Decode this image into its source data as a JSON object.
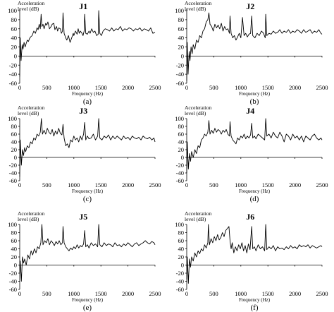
{
  "chart_data": [
    {
      "type": "line",
      "title": "J1",
      "panel_label": "(a)",
      "ylabel_lines": [
        "Acceleration",
        "level (dB)"
      ],
      "xlabel": "Frequency (Hz)",
      "xlim": [
        0,
        2500
      ],
      "ylim": [
        -60,
        100
      ],
      "xticks": [
        0,
        500,
        1000,
        1500,
        2000,
        2500
      ],
      "yticks": [
        -60,
        -40,
        -20,
        0,
        20,
        40,
        60,
        80,
        100
      ],
      "x": [
        0,
        10,
        25,
        45,
        60,
        80,
        100,
        120,
        140,
        160,
        180,
        200,
        230,
        260,
        290,
        320,
        340,
        360,
        380,
        395,
        410,
        430,
        450,
        480,
        500,
        520,
        550,
        580,
        600,
        630,
        650,
        680,
        700,
        720,
        750,
        770,
        790,
        800,
        820,
        850,
        870,
        900,
        930,
        960,
        990,
        1000,
        1030,
        1060,
        1080,
        1100,
        1120,
        1150,
        1170,
        1190,
        1200,
        1220,
        1250,
        1280,
        1300,
        1330,
        1360,
        1390,
        1420,
        1450,
        1460,
        1480,
        1510,
        1540,
        1580,
        1620,
        1660,
        1700,
        1740,
        1780,
        1820,
        1860,
        1900,
        1940,
        1980,
        2020,
        2060,
        2100,
        2140,
        2180,
        2220,
        2260,
        2300,
        2340,
        2380,
        2420,
        2460,
        2500
      ],
      "values": [
        -45,
        40,
        -10,
        25,
        15,
        30,
        20,
        28,
        35,
        32,
        38,
        42,
        45,
        55,
        50,
        62,
        58,
        70,
        60,
        92,
        65,
        70,
        60,
        72,
        68,
        75,
        60,
        65,
        70,
        72,
        58,
        65,
        55,
        62,
        60,
        50,
        55,
        95,
        50,
        40,
        35,
        45,
        30,
        40,
        50,
        45,
        55,
        48,
        60,
        50,
        55,
        50,
        45,
        55,
        92,
        50,
        48,
        55,
        50,
        60,
        52,
        55,
        45,
        48,
        100,
        50,
        45,
        55,
        60,
        58,
        55,
        62,
        55,
        60,
        58,
        65,
        55,
        60,
        58,
        62,
        60,
        55,
        60,
        58,
        62,
        55,
        60,
        58,
        55,
        62,
        50,
        52
      ]
    },
    {
      "type": "line",
      "title": "J2",
      "panel_label": "(b)",
      "ylabel_lines": [
        "Acceleration",
        "level (dB)"
      ],
      "xlabel": "Frequency (Hz)",
      "xlim": [
        0,
        2500
      ],
      "ylim": [
        -60,
        100
      ],
      "xticks": [
        0,
        500,
        1000,
        1500,
        2000,
        2500
      ],
      "yticks": [
        -60,
        -40,
        -20,
        0,
        20,
        40,
        60,
        80,
        100
      ],
      "x": [
        0,
        10,
        25,
        45,
        60,
        80,
        100,
        120,
        150,
        180,
        210,
        240,
        270,
        300,
        330,
        360,
        390,
        410,
        430,
        460,
        490,
        520,
        550,
        580,
        610,
        640,
        670,
        700,
        730,
        760,
        790,
        800,
        820,
        850,
        880,
        910,
        940,
        970,
        1000,
        1030,
        1060,
        1090,
        1120,
        1150,
        1180,
        1200,
        1220,
        1260,
        1300,
        1340,
        1380,
        1420,
        1450,
        1460,
        1480,
        1520,
        1560,
        1600,
        1640,
        1680,
        1720,
        1760,
        1800,
        1840,
        1880,
        1920,
        1960,
        2000,
        2040,
        2080,
        2120,
        2160,
        2200,
        2240,
        2280,
        2320,
        2360,
        2400,
        2440,
        2480,
        2500
      ],
      "values": [
        -55,
        30,
        -40,
        10,
        -10,
        20,
        5,
        25,
        15,
        35,
        30,
        45,
        40,
        55,
        60,
        75,
        80,
        95,
        70,
        65,
        55,
        70,
        62,
        68,
        60,
        72,
        55,
        65,
        58,
        60,
        50,
        88,
        50,
        40,
        45,
        35,
        42,
        50,
        40,
        85,
        45,
        50,
        42,
        48,
        50,
        88,
        45,
        40,
        50,
        45,
        55,
        50,
        40,
        92,
        45,
        50,
        48,
        55,
        50,
        52,
        58,
        50,
        55,
        52,
        58,
        50,
        55,
        52,
        58,
        55,
        50,
        58,
        52,
        55,
        58,
        50,
        55,
        52,
        58,
        50,
        48
      ]
    },
    {
      "type": "line",
      "title": "J3",
      "panel_label": "(c)",
      "ylabel_lines": [
        "Acceleration",
        "level (dB)"
      ],
      "xlabel": "Frequency (Hz)",
      "xlim": [
        0,
        2500
      ],
      "ylim": [
        -60,
        100
      ],
      "xticks": [
        0,
        500,
        1000,
        1500,
        2000,
        2500
      ],
      "yticks": [
        -60,
        -40,
        -20,
        0,
        20,
        40,
        60,
        80,
        100
      ],
      "x": [
        0,
        10,
        30,
        50,
        70,
        90,
        110,
        140,
        170,
        200,
        230,
        260,
        290,
        320,
        350,
        380,
        400,
        420,
        450,
        480,
        510,
        540,
        570,
        600,
        630,
        660,
        690,
        720,
        750,
        780,
        800,
        820,
        850,
        880,
        910,
        940,
        970,
        1000,
        1030,
        1060,
        1090,
        1120,
        1150,
        1180,
        1200,
        1220,
        1250,
        1280,
        1320,
        1360,
        1400,
        1440,
        1460,
        1480,
        1520,
        1560,
        1600,
        1640,
        1680,
        1720,
        1760,
        1800,
        1840,
        1880,
        1920,
        1960,
        2000,
        2040,
        2080,
        2120,
        2160,
        2200,
        2240,
        2280,
        2320,
        2360,
        2400,
        2440,
        2480,
        2500
      ],
      "values": [
        -50,
        45,
        -20,
        20,
        5,
        25,
        15,
        30,
        25,
        40,
        35,
        50,
        45,
        60,
        55,
        65,
        100,
        60,
        70,
        60,
        75,
        65,
        60,
        72,
        55,
        68,
        60,
        75,
        62,
        58,
        85,
        50,
        30,
        35,
        25,
        45,
        40,
        55,
        45,
        50,
        40,
        55,
        45,
        60,
        90,
        45,
        55,
        48,
        50,
        60,
        45,
        55,
        100,
        50,
        45,
        55,
        50,
        58,
        45,
        55,
        48,
        55,
        50,
        45,
        55,
        48,
        52,
        45,
        55,
        50,
        48,
        52,
        45,
        55,
        50,
        48,
        52,
        45,
        50,
        40
      ]
    },
    {
      "type": "line",
      "title": "J4",
      "panel_label": "(d)",
      "ylabel_lines": [
        "Acceleration",
        "level (dB)"
      ],
      "xlabel": "Frequency (Hz)",
      "xlim": [
        0,
        2500
      ],
      "ylim": [
        -60,
        100
      ],
      "xticks": [
        0,
        500,
        1000,
        1500,
        2000,
        2500
      ],
      "yticks": [
        -60,
        -40,
        -20,
        0,
        20,
        40,
        60,
        80,
        100
      ],
      "x": [
        0,
        10,
        30,
        50,
        70,
        90,
        120,
        150,
        180,
        210,
        240,
        270,
        300,
        330,
        360,
        390,
        410,
        430,
        460,
        490,
        520,
        550,
        580,
        610,
        640,
        670,
        700,
        730,
        760,
        790,
        800,
        820,
        850,
        880,
        910,
        940,
        970,
        1000,
        1030,
        1060,
        1090,
        1120,
        1150,
        1180,
        1200,
        1220,
        1250,
        1280,
        1320,
        1360,
        1400,
        1440,
        1460,
        1480,
        1520,
        1560,
        1600,
        1640,
        1680,
        1720,
        1760,
        1800,
        1840,
        1880,
        1920,
        1960,
        2000,
        2040,
        2080,
        2120,
        2160,
        2200,
        2240,
        2280,
        2320,
        2360,
        2400,
        2440,
        2480,
        2500
      ],
      "values": [
        -40,
        40,
        -30,
        10,
        -10,
        15,
        0,
        20,
        10,
        30,
        25,
        45,
        50,
        60,
        55,
        65,
        95,
        60,
        70,
        62,
        75,
        65,
        72,
        68,
        60,
        70,
        65,
        72,
        60,
        55,
        92,
        55,
        45,
        40,
        35,
        50,
        45,
        55,
        50,
        60,
        48,
        55,
        50,
        58,
        88,
        50,
        55,
        48,
        60,
        55,
        50,
        45,
        100,
        55,
        60,
        50,
        65,
        55,
        50,
        65,
        55,
        40,
        60,
        55,
        45,
        60,
        50,
        55,
        45,
        55,
        40,
        55,
        50,
        45,
        55,
        60,
        50,
        45,
        50,
        45
      ]
    },
    {
      "type": "line",
      "title": "J5",
      "panel_label": "(e)",
      "ylabel_lines": [
        "Acceleration",
        "level (dB)"
      ],
      "xlabel": "Frequency (Hz)",
      "xlim": [
        0,
        2500
      ],
      "ylim": [
        -60,
        100
      ],
      "xticks": [
        0,
        500,
        1000,
        1500,
        2000,
        2500
      ],
      "yticks": [
        -60,
        -40,
        -20,
        0,
        20,
        40,
        60,
        80,
        100
      ],
      "x": [
        0,
        10,
        30,
        50,
        70,
        90,
        120,
        150,
        180,
        210,
        240,
        270,
        300,
        330,
        360,
        390,
        410,
        430,
        460,
        490,
        520,
        550,
        580,
        610,
        640,
        670,
        700,
        730,
        760,
        790,
        800,
        820,
        850,
        880,
        910,
        940,
        970,
        1000,
        1030,
        1060,
        1090,
        1120,
        1150,
        1180,
        1200,
        1220,
        1250,
        1280,
        1320,
        1360,
        1400,
        1440,
        1460,
        1480,
        1520,
        1560,
        1600,
        1640,
        1680,
        1720,
        1760,
        1800,
        1840,
        1880,
        1920,
        1960,
        2000,
        2040,
        2080,
        2120,
        2160,
        2200,
        2240,
        2280,
        2320,
        2360,
        2400,
        2440,
        2480,
        2500
      ],
      "values": [
        -20,
        10,
        -40,
        20,
        5,
        15,
        0,
        25,
        15,
        35,
        25,
        40,
        30,
        45,
        40,
        55,
        100,
        50,
        60,
        55,
        65,
        50,
        60,
        55,
        48,
        58,
        52,
        60,
        50,
        55,
        95,
        55,
        45,
        40,
        35,
        42,
        38,
        45,
        40,
        50,
        42,
        48,
        45,
        52,
        85,
        45,
        50,
        42,
        55,
        48,
        52,
        45,
        100,
        50,
        45,
        55,
        48,
        52,
        50,
        45,
        55,
        48,
        50,
        45,
        52,
        48,
        55,
        50,
        45,
        52,
        55,
        48,
        52,
        55,
        60,
        55,
        52,
        58,
        55,
        50
      ]
    },
    {
      "type": "line",
      "title": "J6",
      "panel_label": "(f)",
      "ylabel_lines": [
        "Acceleration",
        "level (dB)"
      ],
      "xlabel": "Frequency (Hz)",
      "xlim": [
        0,
        2500
      ],
      "ylim": [
        -60,
        100
      ],
      "xticks": [
        0,
        500,
        1000,
        1500,
        2000,
        2500
      ],
      "yticks": [
        -60,
        -40,
        -20,
        0,
        20,
        40,
        60,
        80,
        100
      ],
      "x": [
        0,
        10,
        30,
        50,
        70,
        90,
        120,
        150,
        180,
        210,
        240,
        270,
        300,
        330,
        360,
        390,
        400,
        420,
        450,
        480,
        510,
        540,
        570,
        600,
        630,
        660,
        690,
        720,
        750,
        780,
        800,
        820,
        840,
        870,
        900,
        930,
        960,
        990,
        1020,
        1050,
        1080,
        1110,
        1140,
        1170,
        1200,
        1220,
        1250,
        1280,
        1320,
        1360,
        1400,
        1440,
        1460,
        1480,
        1520,
        1560,
        1600,
        1640,
        1680,
        1720,
        1760,
        1800,
        1840,
        1880,
        1920,
        1960,
        2000,
        2040,
        2080,
        2120,
        2160,
        2200,
        2240,
        2280,
        2320,
        2360,
        2400,
        2440,
        2480,
        2500
      ],
      "values": [
        -35,
        20,
        -45,
        15,
        -5,
        20,
        10,
        30,
        20,
        35,
        28,
        40,
        35,
        50,
        42,
        55,
        100,
        50,
        65,
        55,
        70,
        60,
        75,
        62,
        68,
        80,
        70,
        85,
        90,
        95,
        60,
        40,
        55,
        30,
        45,
        35,
        50,
        40,
        55,
        35,
        48,
        30,
        52,
        38,
        95,
        40,
        45,
        35,
        50,
        40,
        45,
        35,
        100,
        38,
        45,
        40,
        48,
        35,
        45,
        40,
        42,
        38,
        45,
        40,
        48,
        42,
        45,
        40,
        50,
        45,
        48,
        45,
        50,
        42,
        48,
        45,
        42,
        45,
        48,
        45
      ]
    }
  ]
}
